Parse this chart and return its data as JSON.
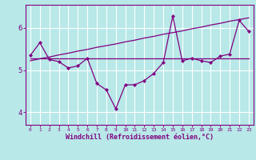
{
  "x": [
    0,
    1,
    2,
    3,
    4,
    5,
    6,
    7,
    8,
    9,
    10,
    11,
    12,
    13,
    14,
    15,
    16,
    17,
    18,
    19,
    20,
    21,
    22,
    23
  ],
  "y_main": [
    5.35,
    5.65,
    5.25,
    5.2,
    5.05,
    5.1,
    5.28,
    4.68,
    4.53,
    4.08,
    4.65,
    4.65,
    4.75,
    4.92,
    5.18,
    6.28,
    5.22,
    5.28,
    5.22,
    5.18,
    5.33,
    5.38,
    6.18,
    5.92
  ],
  "y_trend1": [
    5.22,
    5.27,
    5.31,
    5.36,
    5.4,
    5.45,
    5.49,
    5.54,
    5.58,
    5.62,
    5.67,
    5.71,
    5.76,
    5.8,
    5.85,
    5.89,
    5.93,
    5.98,
    6.02,
    6.07,
    6.11,
    6.16,
    6.2,
    6.24
  ],
  "y_trend2": [
    5.28,
    5.28,
    5.28,
    5.28,
    5.28,
    5.28,
    5.28,
    5.28,
    5.28,
    5.28,
    5.28,
    5.28,
    5.28,
    5.28,
    5.28,
    5.28,
    5.28,
    5.28,
    5.28,
    5.28,
    5.28,
    5.28,
    5.28,
    5.28
  ],
  "main_color": "#800080",
  "trend_color1": "#800080",
  "trend_color2": "#800080",
  "bg_color": "#b8e8e8",
  "grid_color": "#ffffff",
  "axis_color": "#800080",
  "xlabel": "Windchill (Refroidissement éolien,°C)",
  "ylim": [
    3.7,
    6.55
  ],
  "yticks": [
    4,
    5,
    6
  ],
  "xlim": [
    -0.5,
    23.5
  ]
}
